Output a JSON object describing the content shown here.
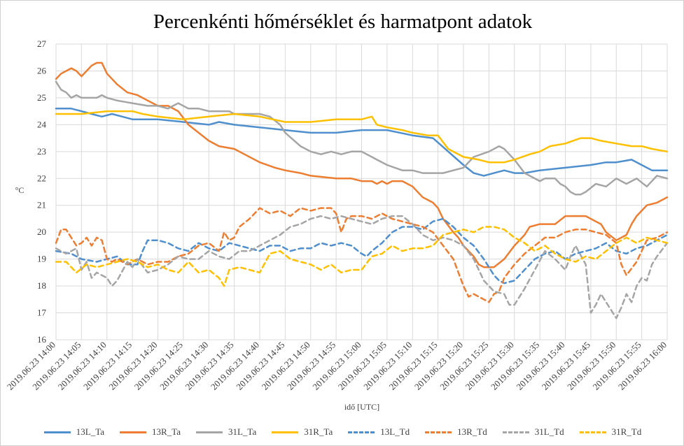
{
  "chart_data": {
    "type": "line",
    "title": "Percenkénti hőmérséklet és harmatpont adatok",
    "xlabel": "idő [UTC]",
    "ylabel": "°C",
    "ylim": [
      16,
      27
    ],
    "yticks": [
      16,
      17,
      18,
      19,
      20,
      21,
      22,
      23,
      24,
      25,
      26,
      27
    ],
    "xrange_minutes": [
      0,
      120
    ],
    "xtick_labels": [
      "2019.06.23 14:00",
      "2019.06.23 14:05",
      "2019.06.23 14:10",
      "2019.06.23 14:15",
      "2019.06.23 14:20",
      "2019.06.23 14:25",
      "2019.06.23 14:30",
      "2019.06.23 14:35",
      "2019.06.23 14:40",
      "2019.06.23 14:45",
      "2019.06.23 14:50",
      "2019.06.23 14:55",
      "2019.06.23 15:00",
      "2019.06.23 15:05",
      "2019.06.23 15:10",
      "2019.06.23 15:15",
      "2019.06.23 15:20",
      "2019.06.23 15:25",
      "2019.06.23 15:30",
      "2019.06.23 15:35",
      "2019.06.23 15:40",
      "2019.06.23 15:45",
      "2019.06.23 15:50",
      "2019.06.23 15:55",
      "2019.06.23 16:00"
    ],
    "grid": true,
    "legend_position": "bottom",
    "series": [
      {
        "name": "13L_Ta",
        "color": "#4f8fce",
        "dashed": false,
        "x": [
          0,
          3,
          5,
          7,
          9,
          11,
          13,
          15,
          20,
          25,
          30,
          32,
          35,
          40,
          45,
          50,
          55,
          60,
          65,
          70,
          74,
          77,
          80,
          82,
          84,
          86,
          88,
          90,
          92,
          95,
          100,
          105,
          108,
          110,
          113,
          115,
          117,
          120
        ],
        "y": [
          24.6,
          24.6,
          24.5,
          24.4,
          24.3,
          24.4,
          24.3,
          24.2,
          24.2,
          24.1,
          24.0,
          24.1,
          24.0,
          23.9,
          23.8,
          23.7,
          23.7,
          23.8,
          23.8,
          23.6,
          23.5,
          23.0,
          22.5,
          22.2,
          22.1,
          22.2,
          22.3,
          22.2,
          22.2,
          22.3,
          22.4,
          22.5,
          22.6,
          22.6,
          22.7,
          22.5,
          22.3,
          22.3
        ]
      },
      {
        "name": "13R_Ta",
        "color": "#ed7d31",
        "dashed": false,
        "x": [
          0,
          1,
          2,
          3,
          4,
          5,
          6,
          7,
          8,
          9,
          10,
          12,
          14,
          16,
          18,
          20,
          22,
          24,
          26,
          28,
          30,
          32,
          35,
          37,
          40,
          43,
          45,
          48,
          50,
          55,
          58,
          60,
          62,
          63,
          64,
          65,
          66,
          68,
          69,
          70,
          72,
          73,
          74,
          75,
          76,
          78,
          79,
          80,
          82,
          83,
          84,
          85,
          86,
          88,
          90,
          92,
          93,
          95,
          96,
          98,
          100,
          102,
          104,
          106,
          107,
          108,
          110,
          112,
          113,
          114,
          115,
          116,
          118,
          120
        ],
        "y": [
          25.7,
          25.9,
          26.0,
          26.1,
          26.0,
          25.8,
          26.0,
          26.2,
          26.3,
          26.3,
          25.9,
          25.5,
          25.2,
          25.1,
          24.9,
          24.7,
          24.7,
          24.5,
          24.0,
          23.7,
          23.4,
          23.2,
          23.1,
          22.9,
          22.6,
          22.4,
          22.3,
          22.2,
          22.1,
          22.0,
          22.0,
          21.9,
          21.9,
          21.8,
          21.9,
          21.8,
          21.9,
          21.9,
          21.8,
          21.7,
          21.3,
          21.2,
          21.1,
          20.9,
          20.5,
          20.0,
          19.8,
          19.5,
          19.1,
          18.8,
          18.7,
          18.7,
          18.7,
          19.0,
          19.5,
          19.9,
          20.2,
          20.3,
          20.3,
          20.3,
          20.6,
          20.6,
          20.6,
          20.4,
          20.3,
          20.0,
          19.7,
          19.9,
          20.3,
          20.6,
          20.8,
          21.0,
          21.1,
          21.3
        ]
      },
      {
        "name": "31L_Ta",
        "color": "#a5a5a5",
        "dashed": false,
        "x": [
          0,
          1,
          2,
          3,
          4,
          5,
          6,
          8,
          9,
          10,
          12,
          15,
          18,
          20,
          22,
          23,
          24,
          26,
          28,
          30,
          32,
          34,
          35,
          40,
          42,
          44,
          45,
          48,
          50,
          52,
          54,
          56,
          58,
          60,
          62,
          63,
          65,
          68,
          70,
          72,
          74,
          76,
          78,
          80,
          82,
          85,
          87,
          88,
          89,
          90,
          92,
          94,
          95,
          96,
          98,
          99,
          100,
          101,
          102,
          103,
          104,
          106,
          108,
          110,
          112,
          114,
          116,
          118,
          120
        ],
        "y": [
          25.6,
          25.3,
          25.2,
          25.0,
          25.1,
          25.0,
          25.0,
          25.0,
          25.1,
          25.0,
          24.9,
          24.8,
          24.7,
          24.7,
          24.6,
          24.7,
          24.8,
          24.6,
          24.6,
          24.5,
          24.5,
          24.5,
          24.4,
          24.4,
          24.3,
          24.0,
          23.7,
          23.2,
          23.0,
          22.9,
          23.0,
          22.9,
          23.0,
          23.0,
          22.8,
          22.7,
          22.5,
          22.3,
          22.3,
          22.2,
          22.2,
          22.2,
          22.3,
          22.4,
          22.8,
          23.0,
          23.2,
          23.1,
          22.9,
          22.7,
          22.2,
          22.0,
          21.9,
          22.0,
          22.0,
          21.8,
          21.7,
          21.5,
          21.4,
          21.4,
          21.5,
          21.8,
          21.7,
          22.0,
          21.8,
          22.0,
          21.7,
          22.1,
          22.0
        ]
      },
      {
        "name": "31R_Ta",
        "color": "#ffc000",
        "dashed": false,
        "x": [
          0,
          5,
          10,
          15,
          17,
          20,
          25,
          30,
          35,
          40,
          45,
          50,
          55,
          60,
          62,
          63,
          65,
          68,
          70,
          73,
          75,
          77,
          80,
          83,
          85,
          88,
          90,
          93,
          95,
          97,
          100,
          103,
          105,
          107,
          110,
          113,
          115,
          117,
          120
        ],
        "y": [
          24.4,
          24.4,
          24.5,
          24.5,
          24.4,
          24.3,
          24.2,
          24.3,
          24.4,
          24.3,
          24.1,
          24.1,
          24.2,
          24.2,
          24.3,
          24.0,
          23.9,
          23.8,
          23.7,
          23.6,
          23.6,
          23.1,
          22.8,
          22.7,
          22.6,
          22.6,
          22.7,
          22.9,
          23.0,
          23.2,
          23.3,
          23.5,
          23.5,
          23.4,
          23.3,
          23.2,
          23.2,
          23.1,
          23.0
        ]
      },
      {
        "name": "13L_Td",
        "color": "#4f8fce",
        "dashed": true,
        "x": [
          0,
          3,
          5,
          8,
          10,
          12,
          14,
          16,
          17,
          18,
          20,
          22,
          24,
          26,
          28,
          30,
          32,
          34,
          36,
          38,
          40,
          42,
          44,
          46,
          48,
          50,
          52,
          54,
          56,
          58,
          60,
          61,
          62,
          64,
          66,
          68,
          70,
          72,
          74,
          76,
          78,
          80,
          82,
          84,
          86,
          87,
          88,
          90,
          92,
          94,
          96,
          98,
          100,
          102,
          104,
          106,
          108,
          110,
          112,
          114,
          116,
          118,
          120
        ],
        "y": [
          19.3,
          19.2,
          19.0,
          18.9,
          19.0,
          19.1,
          18.8,
          18.8,
          19.3,
          19.7,
          19.7,
          19.6,
          19.4,
          19.3,
          19.6,
          19.4,
          19.3,
          19.6,
          19.5,
          19.4,
          19.3,
          19.5,
          19.5,
          19.3,
          19.4,
          19.4,
          19.6,
          19.5,
          19.6,
          19.5,
          19.2,
          19.1,
          19.3,
          19.6,
          20.0,
          20.2,
          20.2,
          20.1,
          20.4,
          20.5,
          20.2,
          19.8,
          19.5,
          19.0,
          18.4,
          18.2,
          18.1,
          18.2,
          18.6,
          19.0,
          19.2,
          19.3,
          19.0,
          19.2,
          19.3,
          19.4,
          19.6,
          19.3,
          19.2,
          19.4,
          19.5,
          19.7,
          19.9
        ]
      },
      {
        "name": "13R_Td",
        "color": "#ed7d31",
        "dashed": true,
        "x": [
          0,
          1,
          2,
          3,
          4,
          5,
          6,
          7,
          8,
          9,
          10,
          11,
          12,
          14,
          16,
          18,
          20,
          22,
          24,
          26,
          28,
          30,
          32,
          33,
          34,
          35,
          36,
          38,
          40,
          42,
          44,
          46,
          48,
          50,
          52,
          54,
          55,
          56,
          57,
          58,
          60,
          62,
          64,
          66,
          68,
          70,
          72,
          74,
          76,
          78,
          80,
          81,
          82,
          84,
          85,
          86,
          87,
          88,
          90,
          92,
          94,
          96,
          98,
          100,
          102,
          104,
          106,
          108,
          110,
          111,
          112,
          114,
          116,
          118,
          120
        ],
        "y": [
          19.6,
          20.1,
          20.1,
          19.8,
          19.5,
          19.6,
          19.8,
          19.5,
          19.8,
          19.7,
          19.0,
          18.9,
          19.0,
          18.8,
          19.0,
          18.8,
          18.9,
          18.9,
          19.1,
          19.2,
          19.5,
          19.6,
          19.3,
          20.0,
          19.7,
          19.8,
          20.2,
          20.5,
          20.9,
          20.7,
          20.8,
          20.6,
          20.9,
          20.8,
          20.9,
          20.9,
          20.7,
          20.0,
          20.5,
          20.6,
          20.6,
          20.5,
          20.7,
          20.5,
          20.4,
          20.3,
          20.2,
          20.0,
          19.5,
          19.0,
          18.0,
          17.6,
          17.7,
          17.5,
          17.4,
          17.7,
          17.8,
          18.3,
          18.8,
          19.2,
          19.5,
          19.8,
          19.8,
          20.0,
          20.1,
          20.1,
          20.0,
          19.9,
          19.6,
          18.8,
          18.4,
          18.9,
          19.7,
          19.8,
          20.0
        ]
      },
      {
        "name": "31L_Td",
        "color": "#a5a5a5",
        "dashed": true,
        "x": [
          0,
          2,
          4,
          5,
          6,
          7,
          8,
          10,
          11,
          12,
          14,
          15,
          16,
          18,
          20,
          22,
          24,
          26,
          28,
          30,
          32,
          34,
          36,
          38,
          40,
          42,
          44,
          46,
          48,
          50,
          52,
          54,
          56,
          58,
          60,
          62,
          64,
          66,
          68,
          70,
          72,
          74,
          76,
          78,
          79,
          80,
          82,
          84,
          86,
          88,
          89,
          90,
          92,
          94,
          96,
          98,
          100,
          101,
          102,
          104,
          105,
          106,
          107,
          108,
          110,
          111,
          112,
          113,
          114,
          115,
          116,
          117,
          118,
          120
        ],
        "y": [
          19.4,
          19.2,
          19.4,
          18.6,
          18.9,
          18.3,
          18.5,
          18.3,
          18.0,
          18.2,
          18.9,
          18.7,
          19.0,
          18.5,
          18.6,
          18.8,
          19.1,
          19.0,
          19.0,
          19.3,
          19.1,
          19.0,
          19.3,
          19.3,
          19.5,
          19.7,
          19.9,
          20.2,
          20.3,
          20.5,
          20.6,
          20.5,
          20.6,
          20.5,
          20.4,
          20.3,
          20.5,
          20.6,
          20.6,
          20.3,
          19.9,
          19.7,
          19.8,
          19.7,
          19.6,
          19.5,
          19.0,
          18.2,
          17.8,
          17.7,
          17.3,
          17.3,
          17.9,
          18.6,
          19.3,
          19.0,
          18.6,
          19.1,
          19.5,
          18.8,
          17.0,
          17.3,
          17.7,
          17.4,
          16.8,
          17.2,
          17.7,
          17.4,
          18.0,
          18.3,
          18.2,
          18.8,
          19.1,
          19.6
        ]
      },
      {
        "name": "31R_Td",
        "color": "#ffc000",
        "dashed": true,
        "x": [
          0,
          2,
          4,
          6,
          8,
          10,
          12,
          14,
          16,
          18,
          20,
          22,
          24,
          26,
          28,
          30,
          32,
          33,
          34,
          36,
          38,
          40,
          42,
          44,
          46,
          48,
          50,
          52,
          54,
          56,
          58,
          60,
          62,
          64,
          66,
          68,
          70,
          72,
          74,
          76,
          78,
          80,
          82,
          84,
          86,
          88,
          90,
          92,
          94,
          96,
          98,
          100,
          102,
          104,
          106,
          108,
          110,
          112,
          114,
          116,
          118,
          120
        ],
        "y": [
          18.9,
          18.9,
          18.5,
          18.8,
          18.7,
          18.8,
          18.9,
          19.0,
          18.9,
          18.7,
          18.8,
          18.6,
          18.5,
          18.9,
          18.5,
          18.6,
          18.3,
          18.0,
          18.6,
          18.7,
          18.6,
          18.5,
          19.2,
          19.3,
          19.0,
          18.9,
          18.8,
          18.6,
          18.8,
          18.5,
          18.6,
          18.6,
          19.1,
          19.2,
          19.5,
          19.3,
          19.4,
          19.4,
          19.5,
          19.9,
          20.0,
          20.1,
          20.0,
          20.2,
          20.2,
          20.1,
          19.8,
          19.6,
          19.3,
          19.5,
          19.2,
          19.0,
          18.9,
          19.1,
          19.0,
          19.3,
          19.6,
          19.8,
          19.6,
          19.8,
          19.7,
          19.6
        ]
      }
    ]
  }
}
